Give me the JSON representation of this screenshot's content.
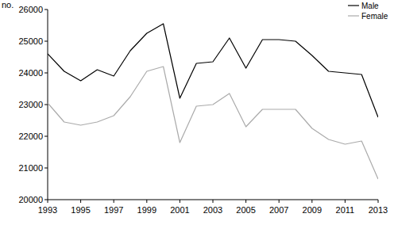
{
  "chart_data": {
    "type": "line",
    "y_label": "no.",
    "x": [
      1993,
      1994,
      1995,
      1996,
      1997,
      1998,
      1999,
      2000,
      2001,
      2002,
      2003,
      2004,
      2005,
      2006,
      2007,
      2008,
      2009,
      2010,
      2011,
      2012,
      2013
    ],
    "series": [
      {
        "name": "Male",
        "color": "#000000",
        "values": [
          24600,
          24050,
          23750,
          24100,
          23900,
          24700,
          25250,
          25550,
          23200,
          24300,
          24350,
          25100,
          24150,
          25050,
          25050,
          25000,
          24550,
          24050,
          24000,
          23950,
          22600
        ]
      },
      {
        "name": "Female",
        "color": "#aaaaaa",
        "values": [
          23050,
          22450,
          22350,
          22450,
          22650,
          23250,
          24050,
          24200,
          21800,
          22950,
          23000,
          23350,
          22300,
          22850,
          22850,
          22850,
          22250,
          21900,
          21750,
          21850,
          20650
        ]
      }
    ],
    "xlim": [
      1993,
      2013
    ],
    "xticks": [
      1993,
      1995,
      1997,
      1999,
      2001,
      2003,
      2005,
      2007,
      2009,
      2011,
      2013
    ],
    "ylim": [
      20000,
      26000
    ],
    "yticks": [
      20000,
      21000,
      22000,
      23000,
      24000,
      25000,
      26000
    ],
    "grid": false,
    "legend": "top-right"
  }
}
